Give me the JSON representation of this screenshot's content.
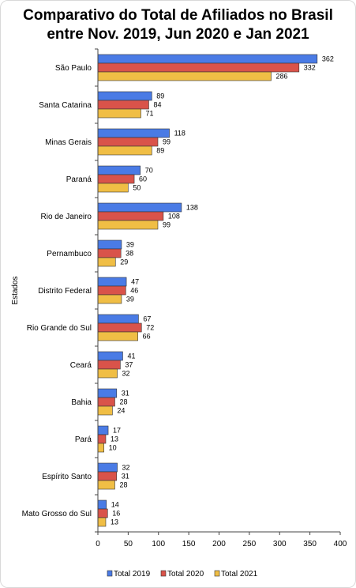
{
  "chart_data": {
    "type": "bar",
    "orientation": "horizontal",
    "title": [
      "Comparativo do Total de Afiliados no Brasil",
      "entre Nov. 2019, Jun 2020 e Jan 2021"
    ],
    "ylabel": "Estados",
    "xlabel": "",
    "xlim": [
      0,
      400
    ],
    "xticks": [
      0,
      50,
      100,
      150,
      200,
      250,
      300,
      350,
      400
    ],
    "grid": false,
    "legend_position": "bottom",
    "categories": [
      "São Paulo",
      "Santa Catarina",
      "Minas Gerais",
      "Paraná",
      "Rio de Janeiro",
      "Pernambuco",
      "Distrito Federal",
      "Rio Grande do Sul",
      "Ceará",
      "Bahia",
      "Pará",
      "Espírito Santo",
      "Mato Grosso do Sul"
    ],
    "series": [
      {
        "name": "Total 2019",
        "color": "#4a7be5",
        "values": [
          362,
          89,
          118,
          70,
          138,
          39,
          47,
          67,
          41,
          31,
          17,
          32,
          14
        ]
      },
      {
        "name": "Total 2020",
        "color": "#d9534a",
        "values": [
          332,
          84,
          99,
          60,
          108,
          38,
          46,
          72,
          37,
          28,
          13,
          31,
          16
        ]
      },
      {
        "name": "Total 2021",
        "color": "#f0be45",
        "values": [
          286,
          71,
          89,
          50,
          99,
          29,
          39,
          66,
          32,
          24,
          10,
          28,
          13
        ]
      }
    ]
  }
}
